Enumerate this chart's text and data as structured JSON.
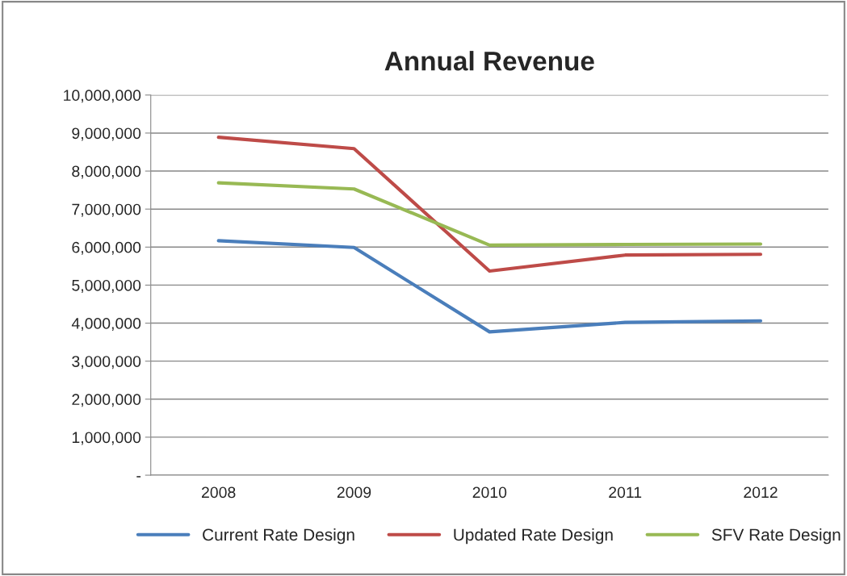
{
  "chart_data": {
    "type": "line",
    "title": "Annual Revenue",
    "categories": [
      "2008",
      "2009",
      "2010",
      "2011",
      "2012"
    ],
    "series": [
      {
        "name": "Current Rate Design",
        "color": "#4a7ebb",
        "values": [
          6170000,
          5990000,
          3770000,
          4020000,
          4060000
        ]
      },
      {
        "name": "Updated Rate Design",
        "color": "#be4b48",
        "values": [
          8890000,
          8590000,
          5370000,
          5790000,
          5810000
        ]
      },
      {
        "name": "SFV Rate Design",
        "color": "#98b954",
        "values": [
          7690000,
          7530000,
          6050000,
          6070000,
          6080000
        ]
      }
    ],
    "ylim": [
      0,
      10000000
    ],
    "yticks": [
      {
        "value": 0,
        "label": "-"
      },
      {
        "value": 1000000,
        "label": "1,000,000"
      },
      {
        "value": 2000000,
        "label": "2,000,000"
      },
      {
        "value": 3000000,
        "label": "3,000,000"
      },
      {
        "value": 4000000,
        "label": "4,000,000"
      },
      {
        "value": 5000000,
        "label": "5,000,000"
      },
      {
        "value": 6000000,
        "label": "6,000,000"
      },
      {
        "value": 7000000,
        "label": "7,000,000"
      },
      {
        "value": 8000000,
        "label": "8,000,000"
      },
      {
        "value": 9000000,
        "label": "9,000,000"
      },
      {
        "value": 10000000,
        "label": "10,000,000"
      }
    ],
    "grid": "y",
    "legend": "bottom",
    "marker": "none",
    "line_style": "solid"
  }
}
